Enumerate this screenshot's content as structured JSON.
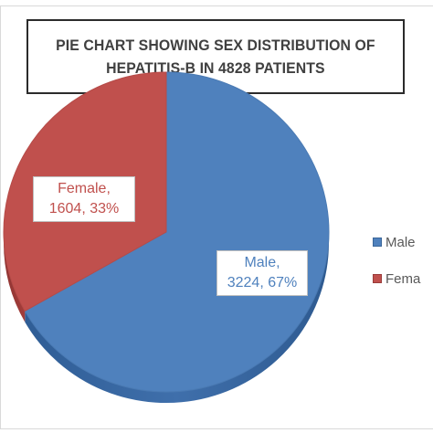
{
  "chart_data": {
    "type": "pie",
    "title": "PIE CHART SHOWING SEX DISTRIBUTION OF\nHEPATITIS-B IN 4828 PATIENTS",
    "slices": [
      {
        "label": "Male",
        "value": 3224,
        "percent": 67,
        "color": "#4f81bd",
        "data_label": [
          "Male,",
          "3224, 67%"
        ]
      },
      {
        "label": "Female",
        "value": 1604,
        "percent": 33,
        "color": "#c0504d",
        "data_label": [
          "Female,",
          "1604, 33%"
        ]
      }
    ],
    "legend": {
      "placement": "right",
      "entries": [
        "Male",
        "Fema"
      ]
    },
    "style": "3d-tilted"
  }
}
